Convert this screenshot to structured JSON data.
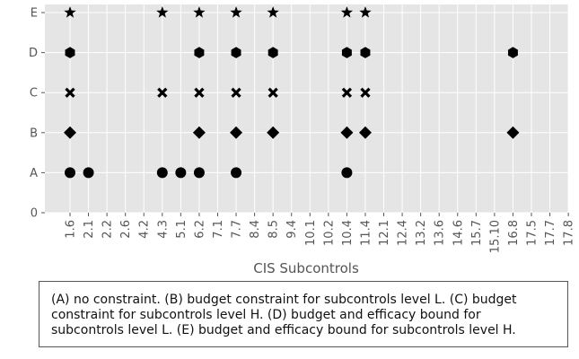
{
  "chart_data": {
    "type": "scatter",
    "xlabel": "CIS Subcontrols",
    "ylabel": "",
    "categories": [
      "1.6",
      "2.1",
      "2.2",
      "2.6",
      "4.2",
      "4.3",
      "5.1",
      "6.2",
      "7.1",
      "7.7",
      "8.4",
      "8.5",
      "9.4",
      "10.1",
      "10.2",
      "10.4",
      "11.4",
      "12.1",
      "12.4",
      "13.2",
      "13.6",
      "14.6",
      "15.7",
      "15.10",
      "16.8",
      "17.5",
      "17.7",
      "17.8"
    ],
    "y_ticks": [
      "0",
      "A",
      "B",
      "C",
      "D",
      "E"
    ],
    "grid": true,
    "background": "#e5e5e5",
    "marker_color": "#000000",
    "series": [
      {
        "name": "A",
        "marker": "circle",
        "x": [
          "1.6",
          "2.1",
          "4.3",
          "5.1",
          "6.2",
          "7.7",
          "10.4"
        ]
      },
      {
        "name": "B",
        "marker": "diamond",
        "x": [
          "1.6",
          "6.2",
          "7.7",
          "8.5",
          "10.4",
          "11.4",
          "16.8"
        ]
      },
      {
        "name": "C",
        "marker": "x",
        "x": [
          "1.6",
          "4.3",
          "6.2",
          "7.7",
          "8.5",
          "10.4",
          "11.4"
        ]
      },
      {
        "name": "D",
        "marker": "hexagon",
        "x": [
          "1.6",
          "6.2",
          "7.7",
          "8.5",
          "10.4",
          "11.4",
          "16.8"
        ]
      },
      {
        "name": "E",
        "marker": "star",
        "x": [
          "1.6",
          "4.3",
          "6.2",
          "7.7",
          "8.5",
          "10.4",
          "11.4"
        ]
      }
    ]
  },
  "caption": "(A) no constraint. (B) budget constraint for subcontrols level L. (C) budget constraint for subcontrols level H. (D) budget and efficacy bound for subcontrols level L. (E) budget and efficacy bound for subcontrols level H."
}
